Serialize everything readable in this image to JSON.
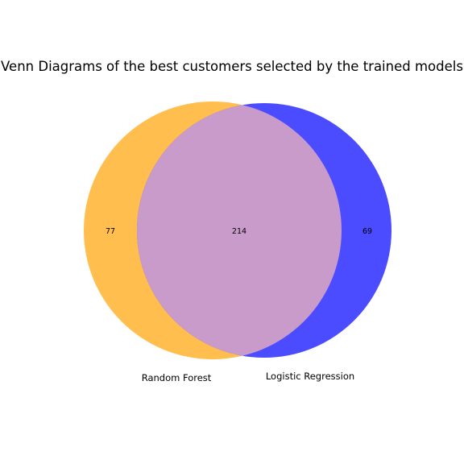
{
  "title": "Venn Diagrams of the best customers selected by the trained models",
  "sets": [
    {
      "key": "rf",
      "name": "Random Forest",
      "only_count": "77",
      "color": "#ffbe4d"
    },
    {
      "key": "lr",
      "name": "Logistic Regression",
      "only_count": "69",
      "color": "#4b4bff"
    }
  ],
  "intersection": {
    "count": "214",
    "color": "#c99bcb"
  }
}
